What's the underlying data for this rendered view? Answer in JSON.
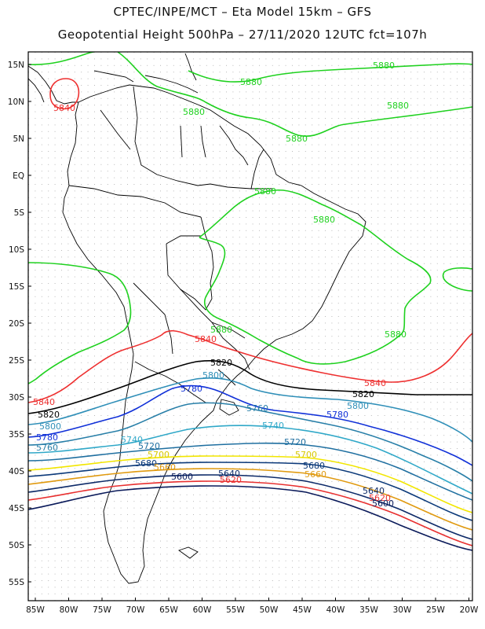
{
  "header": {
    "line1": "CPTEC/INPE/MCT –  Eta Model 15km – GFS",
    "line2": "Geopotential Height 500hPa – 27/11/2020 12UTC fct=107h"
  },
  "map": {
    "lat_ticks": [
      "15N",
      "10N",
      "5N",
      "EQ",
      "5S",
      "10S",
      "15S",
      "20S",
      "25S",
      "30S",
      "35S",
      "40S",
      "45S",
      "50S",
      "55S"
    ],
    "lon_ticks": [
      "85W",
      "80W",
      "75W",
      "70W",
      "65W",
      "60W",
      "55W",
      "50W",
      "45W",
      "40W",
      "35W",
      "30W",
      "25W",
      "20W"
    ],
    "contours": [
      {
        "level": "5880",
        "color": "#1fd11f"
      },
      {
        "level": "5860",
        "color": "#1fd11f"
      },
      {
        "level": "5840",
        "color": "#ee3030"
      },
      {
        "level": "5820",
        "color": "#000000"
      },
      {
        "level": "5800",
        "color": "#2f8fb8"
      },
      {
        "level": "5780",
        "color": "#1030d8"
      },
      {
        "level": "5760",
        "color": "#287fa8"
      },
      {
        "level": "5740",
        "color": "#30a8c8"
      },
      {
        "level": "5720",
        "color": "#1f6fa0"
      },
      {
        "level": "5700",
        "color": "#f2e600"
      },
      {
        "level": "5680",
        "color": "#0c3a7a"
      },
      {
        "level": "5660",
        "color": "#e09a10"
      },
      {
        "level": "5640",
        "color": "#0d2a68"
      },
      {
        "level": "5620",
        "color": "#e83030"
      },
      {
        "level": "5600",
        "color": "#0a1a5a"
      }
    ],
    "labels": {
      "g5880_a": "5880",
      "g5880_b": "5880",
      "g5880_c": "5880",
      "g5880_d": "5880",
      "g5880_e": "5880",
      "g5880_f": "5880",
      "g5880_g": "5880",
      "g5880_h": "5880",
      "g5880_i": "5880",
      "r5840_a": "5840",
      "r5840_b": "5840",
      "r5840_c": "5840",
      "r5840_d": "5840",
      "b5820_a": "5820",
      "b5820_b": "5820",
      "b5820_c": "5820",
      "c5800_a": "5800",
      "c5800_b": "5800",
      "c5800_c": "5800",
      "c5780_a": "5780",
      "c5780_b": "5780",
      "c5780_c": "5780",
      "c5760_a": "5760",
      "c5760_b": "5760",
      "c5740_a": "5740",
      "c5740_b": "5740",
      "c5720_a": "5720",
      "c5720_b": "5720",
      "y5700_a": "5700",
      "y5700_b": "5700",
      "c5680_a": "5680",
      "c5680_b": "5680",
      "o5660_a": "5660",
      "o5660_b": "5660",
      "c5640_a": "5640",
      "c5640_b": "5640",
      "r5620_a": "5620",
      "r5620_b": "5620",
      "c5600_a": "5600",
      "c5600_b": "5600"
    }
  }
}
